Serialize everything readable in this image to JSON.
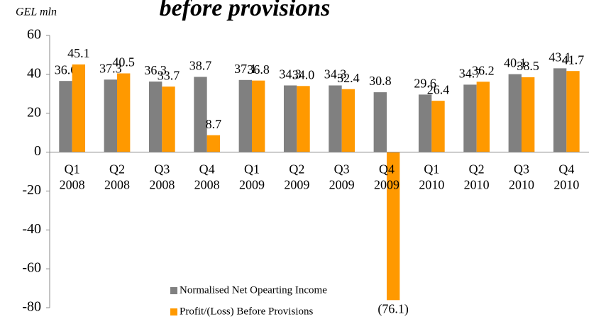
{
  "chart_data": {
    "type": "bar",
    "title": "before provisions",
    "y_axis_label": "GEL mln",
    "categories": [
      "Q1 2008",
      "Q2 2008",
      "Q3 2008",
      "Q4 2008",
      "Q1 2009",
      "Q2 2009",
      "Q3 2009",
      "Q4 2009",
      "Q1 2010",
      "Q2 2010",
      "Q3 2010",
      "Q4 2010"
    ],
    "series": [
      {
        "name": "Normalised Net Opearting Income",
        "color": "#808080",
        "values": [
          36.6,
          37.3,
          36.3,
          38.7,
          37.1,
          34.3,
          34.3,
          30.8,
          29.6,
          34.7,
          40.1,
          43.1
        ],
        "value_labels": [
          "36.6",
          "37.3",
          "36.3",
          "38.7",
          "37.1",
          "34.3",
          "34.3",
          "30.8",
          "29.6",
          "34.7",
          "40.1",
          "43.1"
        ]
      },
      {
        "name": "Profit/(Loss) Before Provisions",
        "color": "#ff9900",
        "values": [
          45.1,
          40.5,
          33.7,
          8.7,
          36.8,
          34.0,
          32.4,
          -76.1,
          26.4,
          36.2,
          38.5,
          41.7
        ],
        "value_labels": [
          "45.1",
          "40.5",
          "33.7",
          "8.7",
          "36.8",
          "34.0",
          "32.4",
          "(76.1)",
          "26.4",
          "36.2",
          "38.5",
          "41.7"
        ]
      }
    ],
    "ylim": [
      -80,
      60
    ],
    "yticks": [
      -80,
      -60,
      -40,
      -20,
      0,
      20,
      40,
      60
    ],
    "grid": false,
    "legend": "bottom"
  }
}
